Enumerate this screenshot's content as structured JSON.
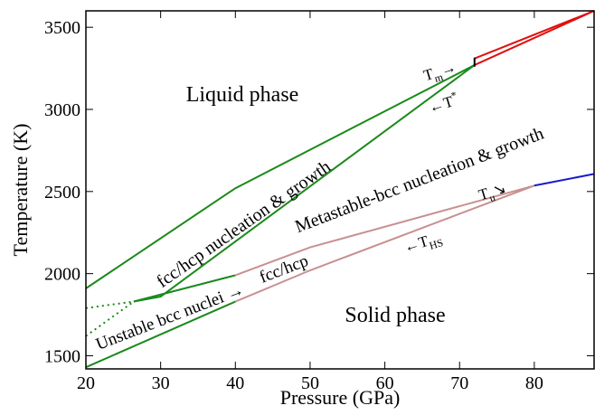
{
  "chart_data": {
    "type": "line",
    "xlabel": "Pressure (GPa)",
    "ylabel": "Temperature (K)",
    "xlim": [
      20,
      88
    ],
    "ylim": [
      1420,
      3600
    ],
    "xticks": [
      20,
      30,
      40,
      50,
      60,
      70,
      80
    ],
    "yticks": [
      1500,
      2000,
      2500,
      3000,
      3500
    ],
    "series": [
      {
        "color": "#1a8a1a",
        "style": "solid",
        "x": [
          20,
          40,
          72
        ],
        "values": [
          1910,
          2520,
          3270
        ]
      },
      {
        "color": "#1a8a1a",
        "style": "solid",
        "x": [
          26.4,
          30,
          72
        ],
        "values": [
          1830,
          1860,
          3270
        ]
      },
      {
        "color": "#1a8a1a",
        "style": "solid",
        "x": [
          26.4,
          40
        ],
        "values": [
          1830,
          1990
        ]
      },
      {
        "color": "#c89090",
        "style": "solid",
        "x": [
          40,
          50,
          80
        ],
        "values": [
          1990,
          2160,
          2536
        ]
      },
      {
        "color": "#1a8a1a",
        "style": "solid",
        "x": [
          20,
          40
        ],
        "values": [
          1430,
          1830
        ]
      },
      {
        "color": "#c89090",
        "style": "solid",
        "x": [
          40,
          50,
          80
        ],
        "values": [
          1830,
          2020,
          2536
        ]
      },
      {
        "color": "#1a1acc",
        "style": "solid",
        "x": [
          80,
          88
        ],
        "values": [
          2536,
          2607
        ]
      },
      {
        "color": "#1a8a1a",
        "style": "dotted",
        "x": [
          20,
          26.4
        ],
        "values": [
          1790,
          1830
        ]
      },
      {
        "color": "#1a8a1a",
        "style": "dotted",
        "x": [
          20,
          26.4
        ],
        "values": [
          1620,
          1830
        ]
      },
      {
        "color": "#e01010",
        "style": "solid",
        "x": [
          72,
          88
        ],
        "values": [
          3310,
          3600
        ]
      },
      {
        "color": "#e01010",
        "style": "solid",
        "x": [
          72,
          88
        ],
        "values": [
          3270,
          3600
        ]
      },
      {
        "color": "#000000",
        "style": "solid",
        "x": [
          72,
          72
        ],
        "values": [
          3260,
          3315
        ]
      }
    ],
    "annotations": [
      {
        "text": "Liquid phase"
      },
      {
        "text": "Solid phase"
      },
      {
        "text": "fcc/hcp nucleation & growth"
      },
      {
        "text": "Metastable-bcc nucleation & growth"
      },
      {
        "text": "Unstable bcc nuclei →"
      },
      {
        "text": "fcc/hcp"
      },
      {
        "base": "T",
        "sub": "m",
        "tail": "→"
      },
      {
        "lead": "←",
        "base": "T",
        "sup": "*"
      },
      {
        "base": "T",
        "sub": "u",
        "tail": "↘"
      },
      {
        "lead": "←",
        "base": "T",
        "sub": "HS"
      }
    ]
  }
}
